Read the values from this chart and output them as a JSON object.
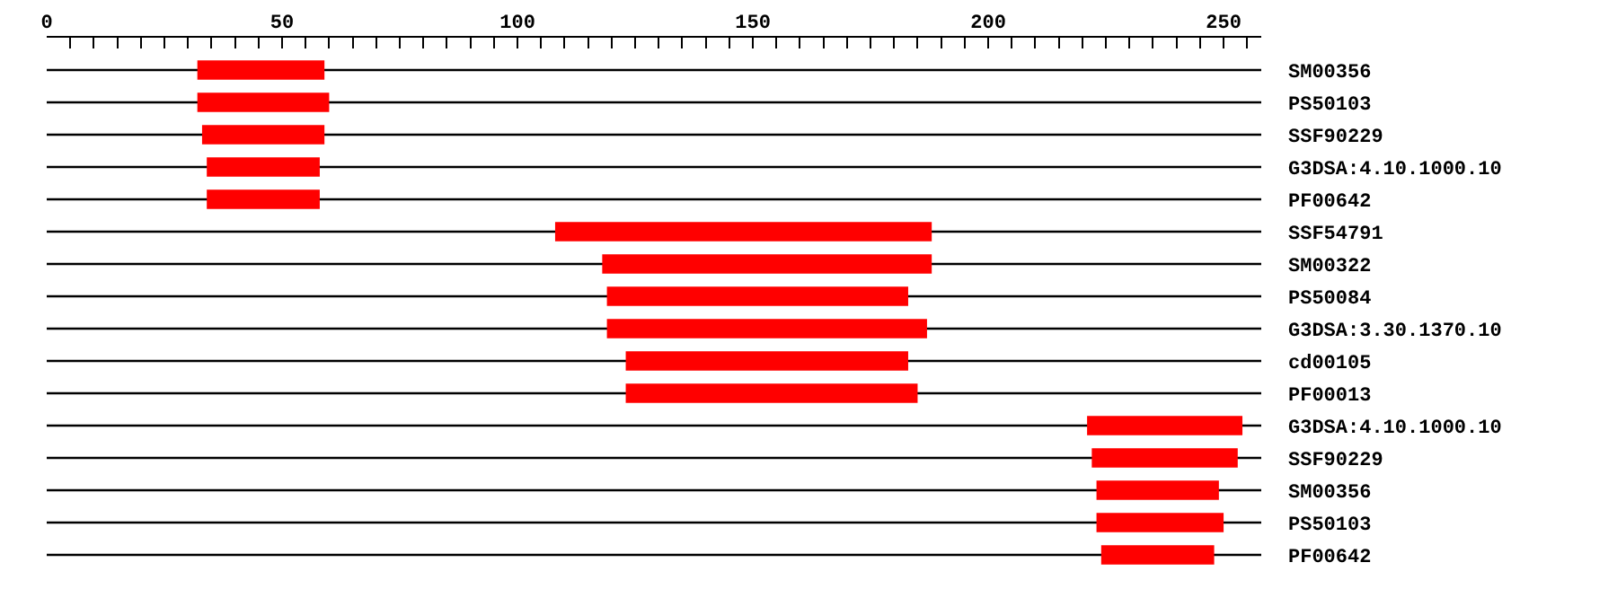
{
  "chart_data": {
    "type": "bar",
    "orientation": "horizontal",
    "categories": [
      "SM00356",
      "PS50103",
      "SSF90229",
      "G3DSA:4.10.1000.10",
      "PF00642",
      "SSF54791",
      "SM00322",
      "PS50084",
      "G3DSA:3.30.1370.10",
      "cd00105",
      "PF00013",
      "G3DSA:4.10.1000.10",
      "SSF90229",
      "SM00356",
      "PS50103",
      "PF00642"
    ],
    "series": [
      {
        "color": "#000000",
        "base": [
          0,
          0,
          0,
          0,
          0,
          0,
          0,
          0,
          0,
          0,
          0,
          0,
          0,
          0,
          0,
          0
        ],
        "values": [
          258,
          258,
          258,
          258,
          258,
          258,
          258,
          258,
          258,
          258,
          258,
          258,
          258,
          258,
          258,
          258
        ]
      },
      {
        "color": "#ff0000",
        "base": [
          32,
          32,
          33,
          34,
          34,
          108,
          118,
          119,
          119,
          123,
          123,
          221,
          222,
          223,
          223,
          224
        ],
        "values": [
          27,
          28,
          26,
          24,
          24,
          80,
          70,
          64,
          68,
          60,
          62,
          33,
          31,
          26,
          27,
          24
        ]
      }
    ],
    "xlim": [
      0,
      258
    ],
    "xticks": [
      0,
      {
        "value": 5,
        "label": null
      },
      {
        "value": 10,
        "label": null
      },
      {
        "value": 15,
        "label": null
      },
      {
        "value": 20,
        "label": null
      },
      {
        "value": 25,
        "label": null
      },
      {
        "value": 30,
        "label": null
      },
      {
        "value": 35,
        "label": null
      },
      {
        "value": 40,
        "label": null
      },
      {
        "value": 45,
        "label": null
      },
      50,
      {
        "value": 55,
        "label": null
      },
      {
        "value": 60,
        "label": null
      },
      {
        "value": 65,
        "label": null
      },
      {
        "value": 70,
        "label": null
      },
      {
        "value": 75,
        "label": null
      },
      {
        "value": 80,
        "label": null
      },
      {
        "value": 85,
        "label": null
      },
      {
        "value": 90,
        "label": null
      },
      {
        "value": 95,
        "label": null
      },
      100,
      {
        "value": 105,
        "label": null
      },
      {
        "value": 110,
        "label": null
      },
      {
        "value": 115,
        "label": null
      },
      {
        "value": 120,
        "label": null
      },
      {
        "value": 125,
        "label": null
      },
      {
        "value": 130,
        "label": null
      },
      {
        "value": 135,
        "label": null
      },
      {
        "value": 140,
        "label": null
      },
      {
        "value": 145,
        "label": null
      },
      150,
      {
        "value": 155,
        "label": null
      },
      {
        "value": 160,
        "label": null
      },
      {
        "value": 165,
        "label": null
      },
      {
        "value": 170,
        "label": null
      },
      {
        "value": 175,
        "label": null
      },
      {
        "value": 180,
        "label": null
      },
      {
        "value": 185,
        "label": null
      },
      {
        "value": 190,
        "label": null
      },
      {
        "value": 195,
        "label": null
      },
      200,
      {
        "value": 205,
        "label": null
      },
      {
        "value": 210,
        "label": null
      },
      {
        "value": 215,
        "label": null
      },
      {
        "value": 220,
        "label": null
      },
      {
        "value": 225,
        "label": null
      },
      {
        "value": 230,
        "label": null
      },
      {
        "value": 235,
        "label": null
      },
      {
        "value": 240,
        "label": null
      },
      {
        "value": 245,
        "label": null
      },
      250,
      {
        "value": 255,
        "label": null
      }
    ]
  }
}
